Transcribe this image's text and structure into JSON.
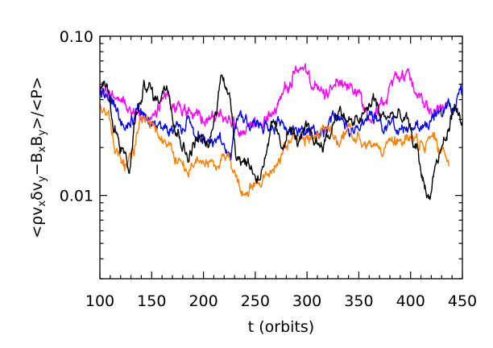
{
  "chart_data": {
    "type": "line",
    "title": "",
    "xlabel": "t (orbits)",
    "ylabel": {
      "parts": [
        "<",
        "ρv",
        "x",
        "δv",
        "y",
        "−B",
        "x",
        "B",
        "y",
        ">/<P>"
      ]
    },
    "xlim": [
      100,
      450
    ],
    "ylim": [
      0.003,
      0.1
    ],
    "y_scale": "log",
    "grid": false,
    "x_ticks": [
      100,
      150,
      200,
      250,
      300,
      350,
      400,
      450
    ],
    "x_tick_labels": [
      "100",
      "150",
      "200",
      "250",
      "300",
      "350",
      "400",
      "450"
    ],
    "y_ticks": [
      0.01,
      0.1
    ],
    "y_tick_labels": [
      "0.01",
      "0.10"
    ],
    "series": [
      {
        "color": "#ff00ff",
        "x_range": [
          100,
          435
        ],
        "anchors": [
          [
            100,
            0.044
          ],
          [
            115,
            0.042
          ],
          [
            130,
            0.036
          ],
          [
            150,
            0.03
          ],
          [
            165,
            0.041
          ],
          [
            185,
            0.033
          ],
          [
            200,
            0.03
          ],
          [
            215,
            0.031
          ],
          [
            225,
            0.03
          ],
          [
            240,
            0.024
          ],
          [
            255,
            0.027
          ],
          [
            268,
            0.034
          ],
          [
            280,
            0.048
          ],
          [
            292,
            0.063
          ],
          [
            305,
            0.05
          ],
          [
            318,
            0.042
          ],
          [
            330,
            0.055
          ],
          [
            345,
            0.046
          ],
          [
            360,
            0.034
          ],
          [
            375,
            0.037
          ],
          [
            385,
            0.055
          ],
          [
            395,
            0.06
          ],
          [
            410,
            0.042
          ],
          [
            420,
            0.033
          ],
          [
            435,
            0.035
          ]
        ]
      },
      {
        "color": "#0000ff",
        "x_range": [
          100,
          450
        ],
        "anchors": [
          [
            100,
            0.048
          ],
          [
            112,
            0.036
          ],
          [
            125,
            0.028
          ],
          [
            140,
            0.033
          ],
          [
            155,
            0.027
          ],
          [
            170,
            0.026
          ],
          [
            185,
            0.028
          ],
          [
            200,
            0.022
          ],
          [
            215,
            0.023
          ],
          [
            225,
            0.018
          ],
          [
            235,
            0.032
          ],
          [
            250,
            0.026
          ],
          [
            262,
            0.027
          ],
          [
            275,
            0.028
          ],
          [
            290,
            0.026
          ],
          [
            300,
            0.027
          ],
          [
            315,
            0.024
          ],
          [
            328,
            0.03
          ],
          [
            345,
            0.025
          ],
          [
            360,
            0.033
          ],
          [
            380,
            0.027
          ],
          [
            395,
            0.028
          ],
          [
            410,
            0.026
          ],
          [
            425,
            0.032
          ],
          [
            440,
            0.036
          ],
          [
            450,
            0.045
          ]
        ]
      },
      {
        "color": "#ff8000",
        "x_range": [
          100,
          437
        ],
        "anchors": [
          [
            100,
            0.038
          ],
          [
            108,
            0.032
          ],
          [
            115,
            0.02
          ],
          [
            122,
            0.015
          ],
          [
            130,
            0.018
          ],
          [
            140,
            0.03
          ],
          [
            152,
            0.026
          ],
          [
            165,
            0.021
          ],
          [
            175,
            0.017
          ],
          [
            185,
            0.014
          ],
          [
            198,
            0.017
          ],
          [
            210,
            0.015
          ],
          [
            222,
            0.019
          ],
          [
            230,
            0.013
          ],
          [
            238,
            0.01
          ],
          [
            248,
            0.012
          ],
          [
            258,
            0.013
          ],
          [
            268,
            0.015
          ],
          [
            280,
            0.02
          ],
          [
            292,
            0.023
          ],
          [
            305,
            0.024
          ],
          [
            318,
            0.026
          ],
          [
            330,
            0.022
          ],
          [
            345,
            0.025
          ],
          [
            360,
            0.02
          ],
          [
            375,
            0.021
          ],
          [
            390,
            0.023
          ],
          [
            400,
            0.022
          ],
          [
            412,
            0.02
          ],
          [
            422,
            0.024
          ],
          [
            430,
            0.019
          ],
          [
            437,
            0.014
          ]
        ]
      },
      {
        "color": "#000000",
        "x_range": [
          100,
          450
        ],
        "anchors": [
          [
            100,
            0.044
          ],
          [
            106,
            0.052
          ],
          [
            115,
            0.025
          ],
          [
            122,
            0.02
          ],
          [
            128,
            0.014
          ],
          [
            135,
            0.032
          ],
          [
            145,
            0.05
          ],
          [
            155,
            0.04
          ],
          [
            165,
            0.05
          ],
          [
            175,
            0.025
          ],
          [
            185,
            0.018
          ],
          [
            195,
            0.023
          ],
          [
            205,
            0.02
          ],
          [
            212,
            0.033
          ],
          [
            218,
            0.062
          ],
          [
            225,
            0.04
          ],
          [
            233,
            0.018
          ],
          [
            243,
            0.016
          ],
          [
            252,
            0.013
          ],
          [
            260,
            0.017
          ],
          [
            268,
            0.028
          ],
          [
            275,
            0.02
          ],
          [
            282,
            0.026
          ],
          [
            292,
            0.022
          ],
          [
            300,
            0.025
          ],
          [
            312,
            0.021
          ],
          [
            320,
            0.023
          ],
          [
            330,
            0.034
          ],
          [
            345,
            0.028
          ],
          [
            355,
            0.032
          ],
          [
            365,
            0.04
          ],
          [
            372,
            0.031
          ],
          [
            382,
            0.032
          ],
          [
            395,
            0.03
          ],
          [
            405,
            0.02
          ],
          [
            412,
            0.013
          ],
          [
            417,
            0.0095
          ],
          [
            425,
            0.016
          ],
          [
            433,
            0.022
          ],
          [
            442,
            0.035
          ],
          [
            450,
            0.03
          ]
        ]
      }
    ]
  }
}
